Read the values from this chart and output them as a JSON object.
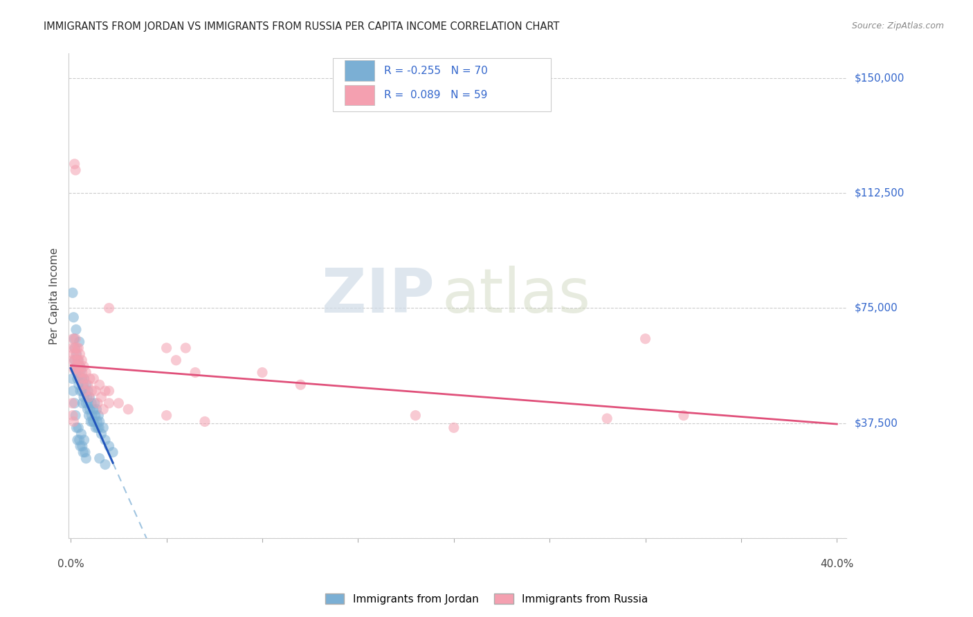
{
  "title": "IMMIGRANTS FROM JORDAN VS IMMIGRANTS FROM RUSSIA PER CAPITA INCOME CORRELATION CHART",
  "source": "Source: ZipAtlas.com",
  "ylabel": "Per Capita Income",
  "y_ticks": [
    0,
    37500,
    75000,
    112500,
    150000
  ],
  "y_max": 158000,
  "y_min": 5000,
  "x_min": -0.001,
  "x_max": 0.405,
  "jordan_color": "#7bafd4",
  "russia_color": "#f4a0b0",
  "jordan_line_color": "#2255bb",
  "russia_line_color": "#e0507a",
  "jordan_dash_color": "#a0c4e0",
  "jordan_R": -0.255,
  "jordan_N": 70,
  "russia_R": 0.089,
  "russia_N": 59,
  "watermark_zip": "ZIP",
  "watermark_atlas": "atlas",
  "legend_jordan": "Immigrants from Jordan",
  "legend_russia": "Immigrants from Russia",
  "jordan_points": [
    [
      0.0008,
      52000
    ],
    [
      0.001,
      80000
    ],
    [
      0.0012,
      48000
    ],
    [
      0.0015,
      72000
    ],
    [
      0.0018,
      65000
    ],
    [
      0.002,
      58000
    ],
    [
      0.0022,
      62000
    ],
    [
      0.0025,
      55000
    ],
    [
      0.0028,
      68000
    ],
    [
      0.003,
      60000
    ],
    [
      0.0032,
      56000
    ],
    [
      0.0035,
      52000
    ],
    [
      0.0038,
      58000
    ],
    [
      0.004,
      54000
    ],
    [
      0.0042,
      50000
    ],
    [
      0.0045,
      64000
    ],
    [
      0.0048,
      56000
    ],
    [
      0.005,
      48000
    ],
    [
      0.0055,
      55000
    ],
    [
      0.0058,
      52000
    ],
    [
      0.006,
      48000
    ],
    [
      0.0062,
      44000
    ],
    [
      0.0065,
      50000
    ],
    [
      0.0068,
      46000
    ],
    [
      0.007,
      52000
    ],
    [
      0.0075,
      48000
    ],
    [
      0.008,
      44000
    ],
    [
      0.0082,
      50000
    ],
    [
      0.0085,
      46000
    ],
    [
      0.0088,
      42000
    ],
    [
      0.009,
      48000
    ],
    [
      0.0092,
      44000
    ],
    [
      0.0095,
      40000
    ],
    [
      0.0098,
      46000
    ],
    [
      0.01,
      42000
    ],
    [
      0.0105,
      38000
    ],
    [
      0.0108,
      44000
    ],
    [
      0.011,
      40000
    ],
    [
      0.0115,
      38000
    ],
    [
      0.0118,
      42000
    ],
    [
      0.012,
      38000
    ],
    [
      0.0125,
      44000
    ],
    [
      0.0128,
      40000
    ],
    [
      0.013,
      36000
    ],
    [
      0.0135,
      42000
    ],
    [
      0.0138,
      38000
    ],
    [
      0.014,
      36000
    ],
    [
      0.0145,
      40000
    ],
    [
      0.0148,
      36000
    ],
    [
      0.002,
      44000
    ],
    [
      0.0025,
      40000
    ],
    [
      0.003,
      36000
    ],
    [
      0.0035,
      32000
    ],
    [
      0.004,
      36000
    ],
    [
      0.0045,
      32000
    ],
    [
      0.005,
      30000
    ],
    [
      0.0055,
      34000
    ],
    [
      0.006,
      30000
    ],
    [
      0.0065,
      28000
    ],
    [
      0.007,
      32000
    ],
    [
      0.0075,
      28000
    ],
    [
      0.008,
      26000
    ],
    [
      0.015,
      38000
    ],
    [
      0.016,
      34000
    ],
    [
      0.017,
      36000
    ],
    [
      0.018,
      32000
    ],
    [
      0.02,
      30000
    ],
    [
      0.022,
      28000
    ],
    [
      0.015,
      26000
    ],
    [
      0.018,
      24000
    ]
  ],
  "russia_points": [
    [
      0.0008,
      62000
    ],
    [
      0.001,
      58000
    ],
    [
      0.0012,
      65000
    ],
    [
      0.0015,
      60000
    ],
    [
      0.0018,
      55000
    ],
    [
      0.002,
      62000
    ],
    [
      0.0022,
      58000
    ],
    [
      0.0025,
      65000
    ],
    [
      0.0028,
      60000
    ],
    [
      0.003,
      56000
    ],
    [
      0.0032,
      62000
    ],
    [
      0.0035,
      58000
    ],
    [
      0.0038,
      55000
    ],
    [
      0.004,
      62000
    ],
    [
      0.0042,
      58000
    ],
    [
      0.0045,
      54000
    ],
    [
      0.0048,
      60000
    ],
    [
      0.005,
      56000
    ],
    [
      0.0055,
      52000
    ],
    [
      0.0058,
      58000
    ],
    [
      0.006,
      54000
    ],
    [
      0.0065,
      50000
    ],
    [
      0.0068,
      56000
    ],
    [
      0.007,
      52000
    ],
    [
      0.0075,
      48000
    ],
    [
      0.008,
      54000
    ],
    [
      0.009,
      50000
    ],
    [
      0.0095,
      46000
    ],
    [
      0.01,
      52000
    ],
    [
      0.011,
      48000
    ],
    [
      0.012,
      52000
    ],
    [
      0.013,
      48000
    ],
    [
      0.014,
      44000
    ],
    [
      0.015,
      50000
    ],
    [
      0.016,
      46000
    ],
    [
      0.017,
      42000
    ],
    [
      0.018,
      48000
    ],
    [
      0.02,
      44000
    ],
    [
      0.05,
      62000
    ],
    [
      0.055,
      58000
    ],
    [
      0.06,
      62000
    ],
    [
      0.065,
      54000
    ],
    [
      0.1,
      54000
    ],
    [
      0.12,
      50000
    ],
    [
      0.0025,
      120000
    ],
    [
      0.002,
      122000
    ],
    [
      0.02,
      75000
    ],
    [
      0.0008,
      44000
    ],
    [
      0.001,
      40000
    ],
    [
      0.0015,
      38000
    ],
    [
      0.02,
      48000
    ],
    [
      0.025,
      44000
    ],
    [
      0.03,
      42000
    ],
    [
      0.05,
      40000
    ],
    [
      0.07,
      38000
    ],
    [
      0.28,
      39000
    ],
    [
      0.18,
      40000
    ],
    [
      0.2,
      36000
    ],
    [
      0.32,
      40000
    ],
    [
      0.3,
      65000
    ]
  ]
}
